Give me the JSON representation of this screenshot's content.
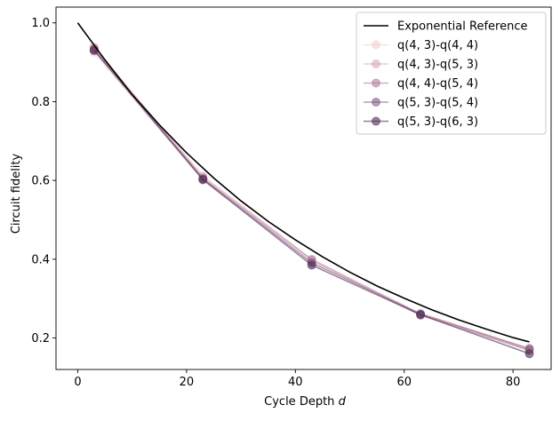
{
  "chart_data": {
    "type": "line",
    "xlabel": "Cycle Depth",
    "xlabel_math": "d",
    "ylabel": "Circuit fidelity",
    "xlim": [
      -4.0,
      87.0
    ],
    "ylim": [
      0.12,
      1.04
    ],
    "xticks": [
      0,
      20,
      40,
      60,
      80
    ],
    "xtick_labels": [
      "0",
      "20",
      "40",
      "60",
      "80"
    ],
    "yticks": [
      0.2,
      0.4,
      0.6,
      0.8,
      1.0
    ],
    "ytick_labels": [
      "0.2",
      "0.4",
      "0.6",
      "0.8",
      "1.0"
    ],
    "grid": false,
    "legend_position": "top-right",
    "reference": {
      "name": "Exponential Reference",
      "color": "#000000",
      "x": [
        0,
        5,
        10,
        15,
        20,
        25,
        30,
        35,
        40,
        45,
        50,
        55,
        60,
        65,
        70,
        75,
        80,
        83
      ],
      "y": [
        1.0,
        0.906,
        0.818,
        0.741,
        0.67,
        0.606,
        0.548,
        0.496,
        0.449,
        0.406,
        0.367,
        0.332,
        0.301,
        0.272,
        0.246,
        0.223,
        0.201,
        0.19
      ]
    },
    "series": [
      {
        "name": "q(4, 3)-q(4, 4)",
        "color": "#efd3d3",
        "x": [
          3,
          23,
          43,
          63,
          83
        ],
        "y": [
          0.925,
          0.6,
          0.392,
          0.258,
          0.17
        ]
      },
      {
        "name": "q(4, 3)-q(5, 3)",
        "color": "#dcaab6",
        "x": [
          3,
          23,
          43,
          63,
          83
        ],
        "y": [
          0.938,
          0.611,
          0.4,
          0.262,
          0.174
        ]
      },
      {
        "name": "q(4, 4)-q(5, 4)",
        "color": "#b47c9d",
        "x": [
          3,
          23,
          43,
          63,
          83
        ],
        "y": [
          0.935,
          0.606,
          0.398,
          0.258,
          0.168
        ]
      },
      {
        "name": "q(5, 3)-q(5, 4)",
        "color": "#845987",
        "x": [
          3,
          23,
          43,
          63,
          83
        ],
        "y": [
          0.932,
          0.604,
          0.391,
          0.261,
          0.172
        ]
      },
      {
        "name": "q(5, 3)-q(6, 3)",
        "color": "#4d2d55",
        "x": [
          3,
          23,
          43,
          63,
          83
        ],
        "y": [
          0.93,
          0.602,
          0.385,
          0.259,
          0.16
        ]
      }
    ]
  }
}
